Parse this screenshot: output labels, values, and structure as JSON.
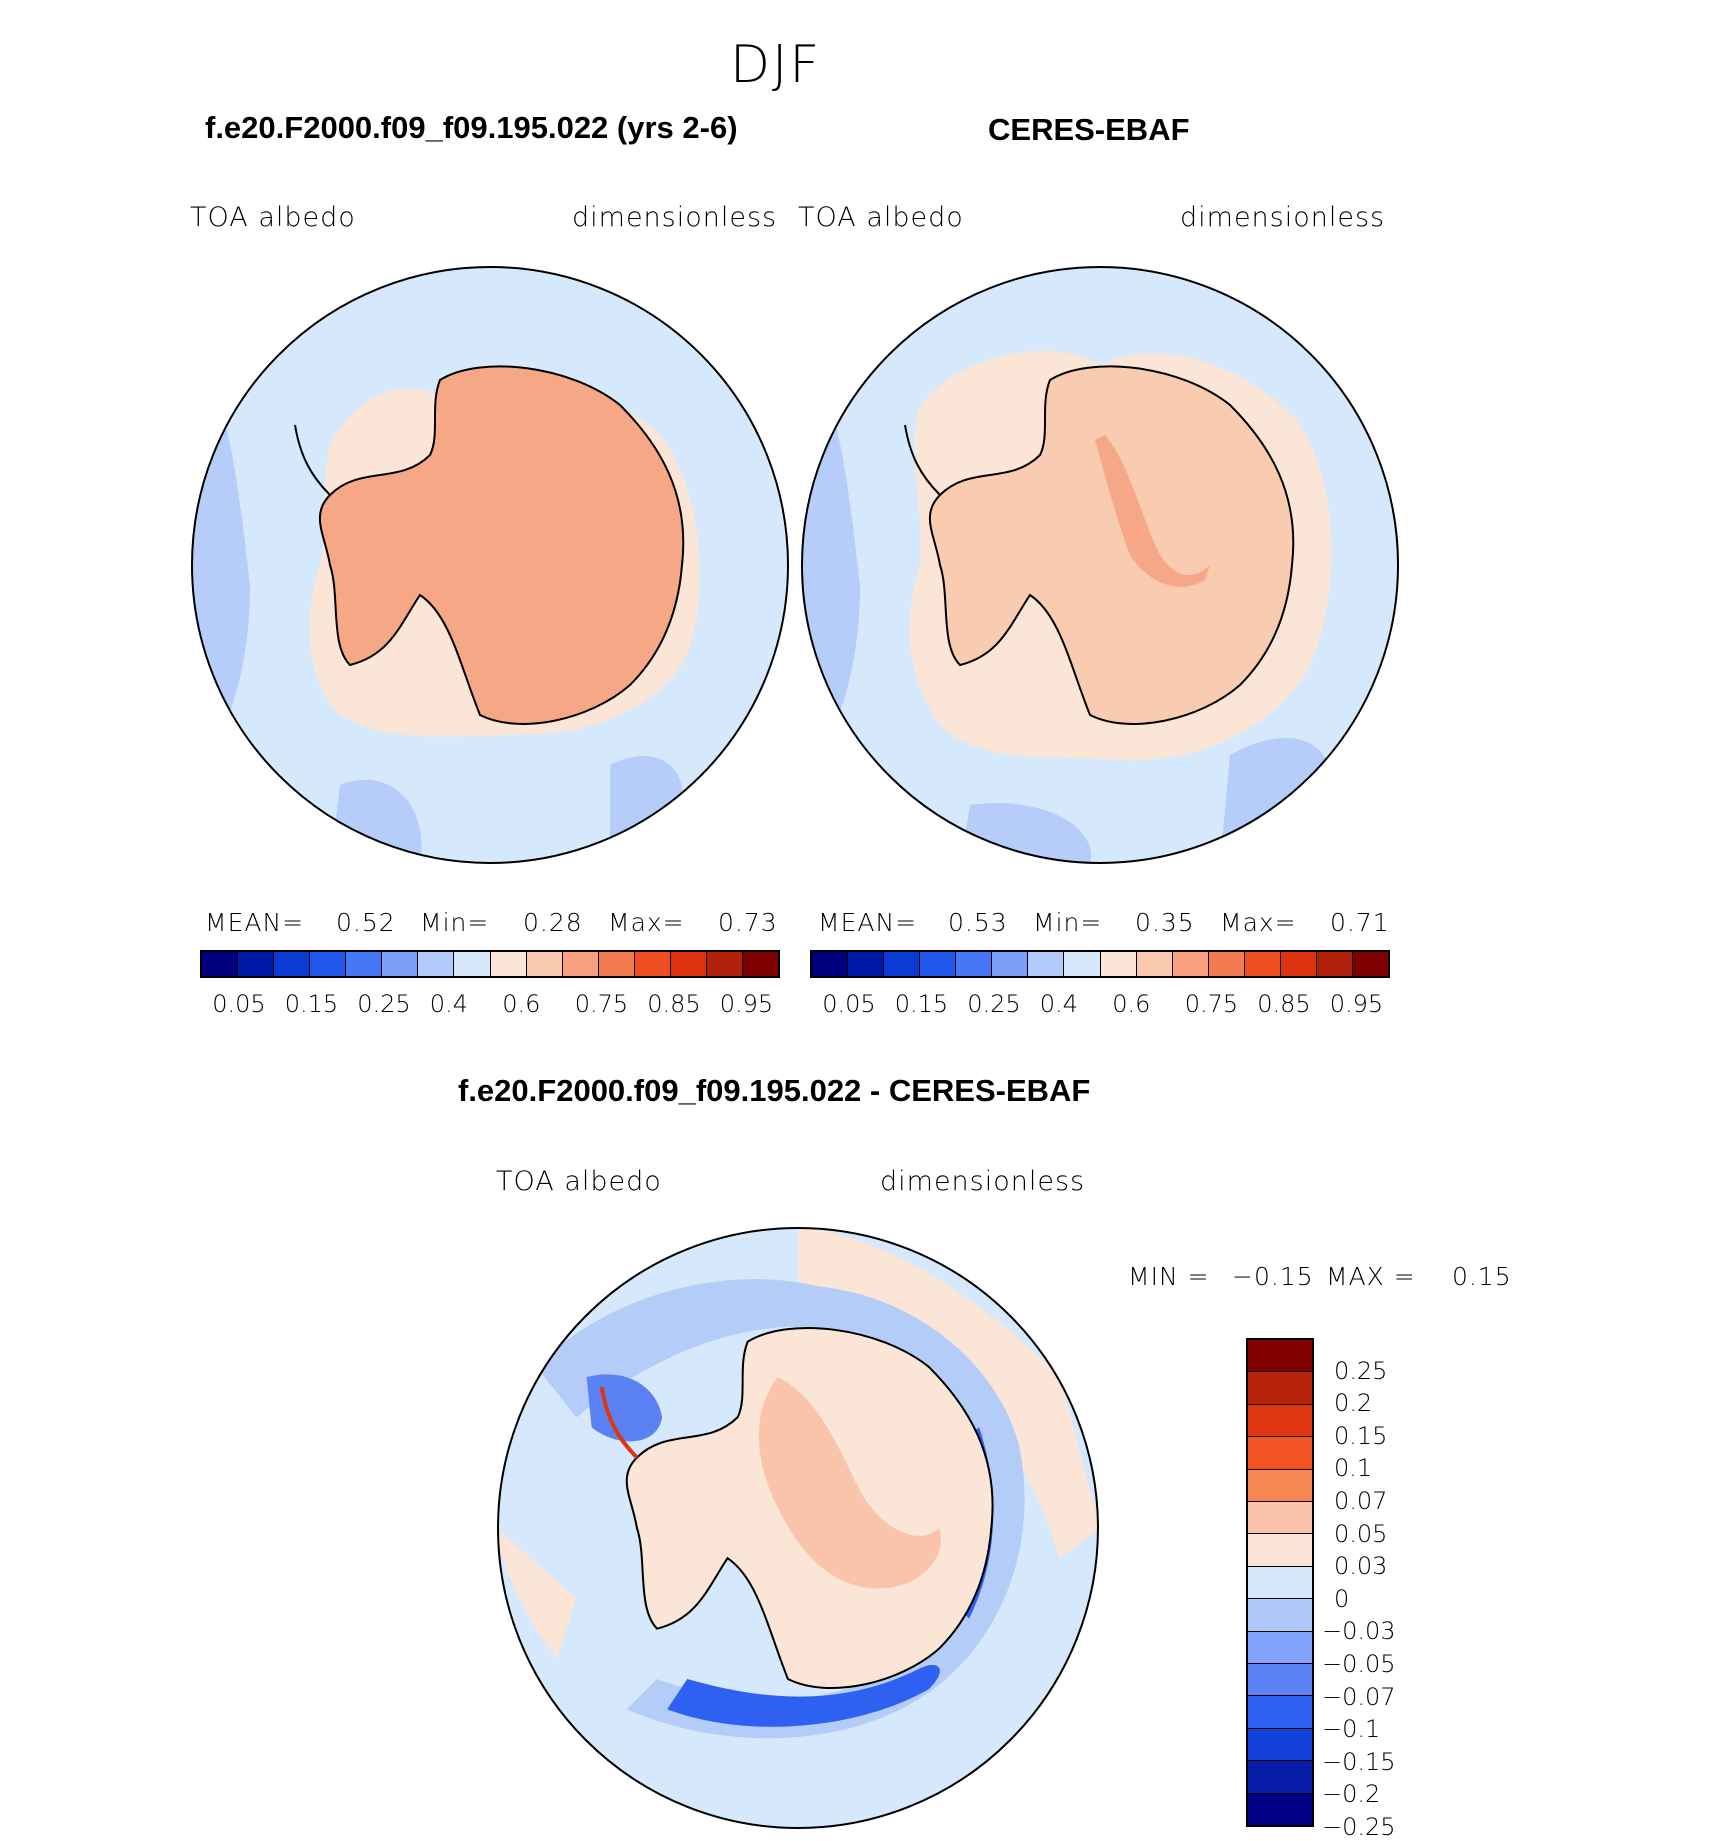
{
  "season": "DJF",
  "panels": [
    {
      "title": "f.e20.F2000.f09_f09.195.022 (yrs 2-6)",
      "variable": "TOA albedo",
      "units": "dimensionless",
      "mean_label": "MEAN=",
      "mean": "0.52",
      "min_label": "Min=",
      "min": "0.28",
      "max_label": "Max=",
      "max": "0.73",
      "tick_labels": [
        "0.05",
        "0.15",
        "0.25",
        "0.4",
        "0.6",
        "0.75",
        "0.85",
        "0.95"
      ]
    },
    {
      "title": "CERES-EBAF",
      "variable": "TOA albedo",
      "units": "dimensionless",
      "mean_label": "MEAN=",
      "mean": "0.53",
      "min_label": "Min=",
      "min": "0.35",
      "max_label": "Max=",
      "max": "0.71",
      "tick_labels": [
        "0.05",
        "0.15",
        "0.25",
        "0.4",
        "0.6",
        "0.75",
        "0.85",
        "0.95"
      ]
    }
  ],
  "diff": {
    "title": "f.e20.F2000.f09_f09.195.022 - CERES-EBAF",
    "variable": "TOA albedo",
    "units": "dimensionless",
    "min_label": "MIN =",
    "min": "−0.15",
    "max_label": "MAX =",
    "max": "0.15",
    "tick_labels": [
      "0.25",
      "0.2",
      "0.15",
      "0.1",
      "0.07",
      "0.05",
      "0.03",
      "0",
      "−0.03",
      "−0.05",
      "−0.07",
      "−0.1",
      "−0.15",
      "−0.2",
      "−0.25"
    ]
  },
  "colors": {
    "abs_scale": [
      "#00007f",
      "#0019a8",
      "#0c3ad4",
      "#2257ee",
      "#4576f5",
      "#7e9ff8",
      "#b3cbfa",
      "#d8e8fb",
      "#fbe5d6",
      "#f9c8af",
      "#f8a07f",
      "#f47a52",
      "#f04e22",
      "#dc3210",
      "#b0200a",
      "#7d0000"
    ],
    "diff_scale": [
      "#840000",
      "#b4230a",
      "#dd3611",
      "#f25423",
      "#f88653",
      "#f9c4aa",
      "#fbe5d6",
      "#d6e7fa",
      "#b1c9fa",
      "#82a3f9",
      "#5b82f5",
      "#2e61f1",
      "#1240d9",
      "#061ba8",
      "#000084"
    ],
    "ocean": "#d6e8fb",
    "ocean_mid": "#b5cdf8",
    "land_model": "#f6a886",
    "land_obs": "#f9cbb1",
    "coast_shelf": "#fbe5d6"
  }
}
